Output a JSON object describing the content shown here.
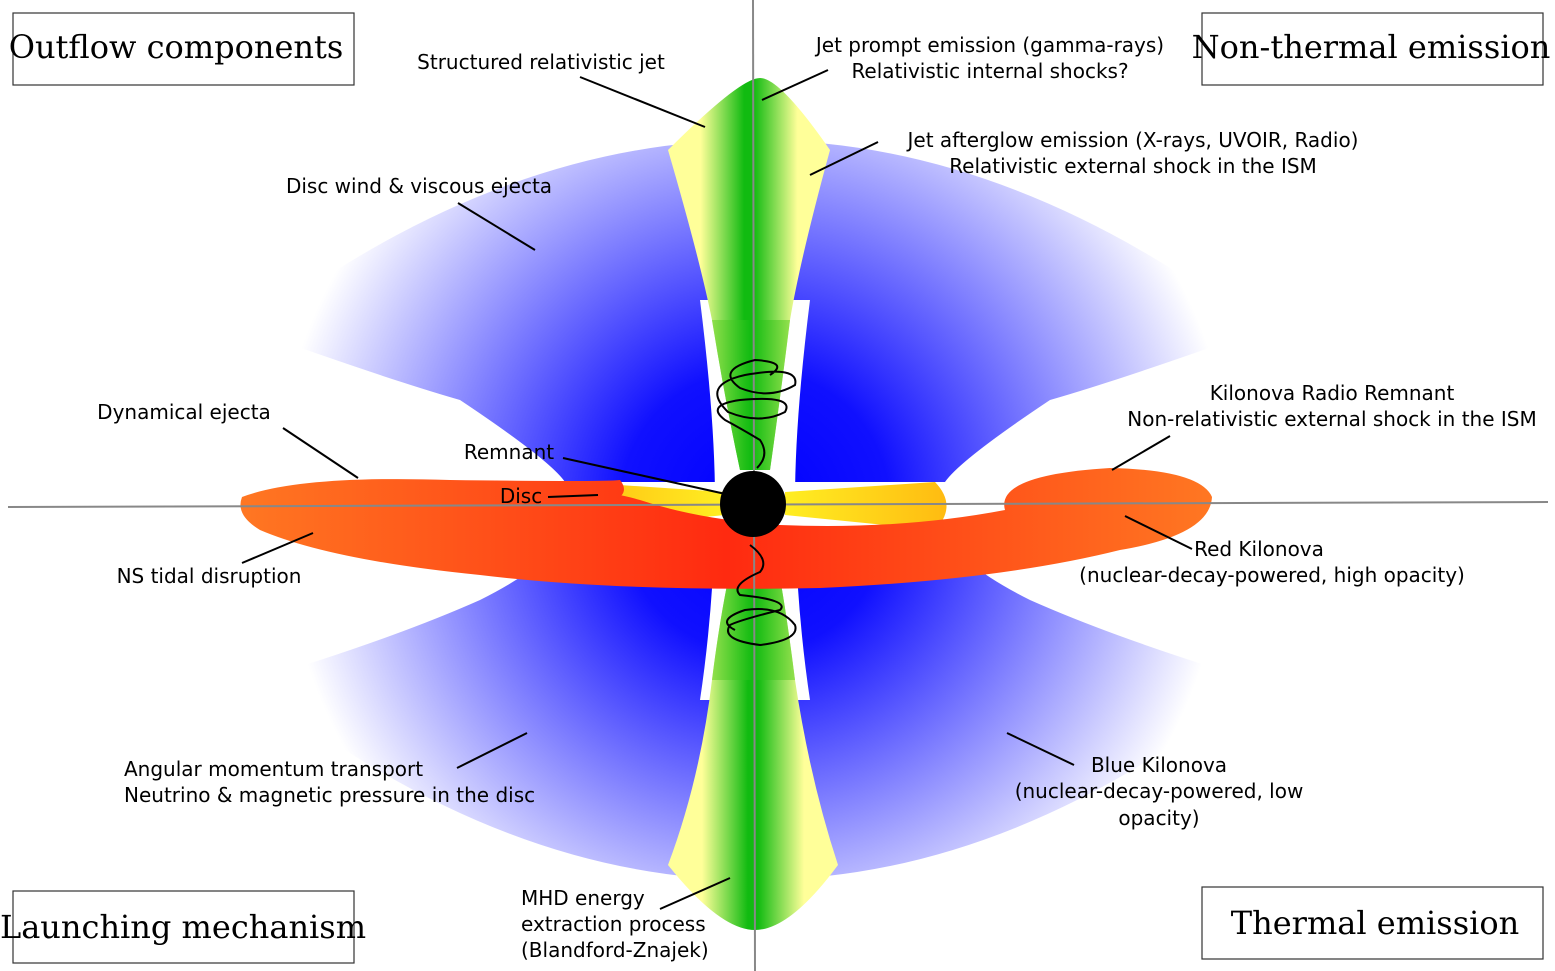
{
  "corners": {
    "top_left": "Outflow components",
    "top_right": "Non-thermal emission",
    "bottom_left": "Launching mechanism",
    "bottom_right": "Thermal emission"
  },
  "labels": {
    "structured_jet": "Structured relativistic jet",
    "jet_prompt_1": "Jet prompt emission (gamma-rays)",
    "jet_prompt_2": "Relativistic internal shocks?",
    "afterglow_1": "Jet afterglow emission (X-rays, UVOIR, Radio)",
    "afterglow_2": "Relativistic external shock in the ISM",
    "disc_wind": "Disc wind & viscous ejecta",
    "radio_remnant_1": "Kilonova Radio Remnant",
    "radio_remnant_2": "Non-relativistic external shock in the ISM",
    "dynamical_ejecta": "Dynamical ejecta",
    "remnant": "Remnant",
    "disc": "Disc",
    "red_kn_1": "Red Kilonova",
    "red_kn_2": "(nuclear-decay-powered, high opacity)",
    "ns_tidal": "NS tidal disruption",
    "angular_1": "Angular momentum transport",
    "angular_2": "Neutrino & magnetic pressure in the disc",
    "blue_kn_1": "Blue Kilonova",
    "blue_kn_2": "(nuclear-decay-powered, low",
    "blue_kn_3": "opacity)",
    "mhd_1": "MHD energy",
    "mhd_2": "extraction process",
    "mhd_3": "(Blandford-Znajek)"
  },
  "colors": {
    "wind_blue": "#0000ff",
    "jet_green": "#22bb22",
    "jet_yellow": "#ffff99",
    "ejecta_red": "#ff3311",
    "ejecta_orange": "#ff8833",
    "disc_gold": "#ffbb00",
    "remnant": "#000000",
    "axis": "#888888"
  }
}
